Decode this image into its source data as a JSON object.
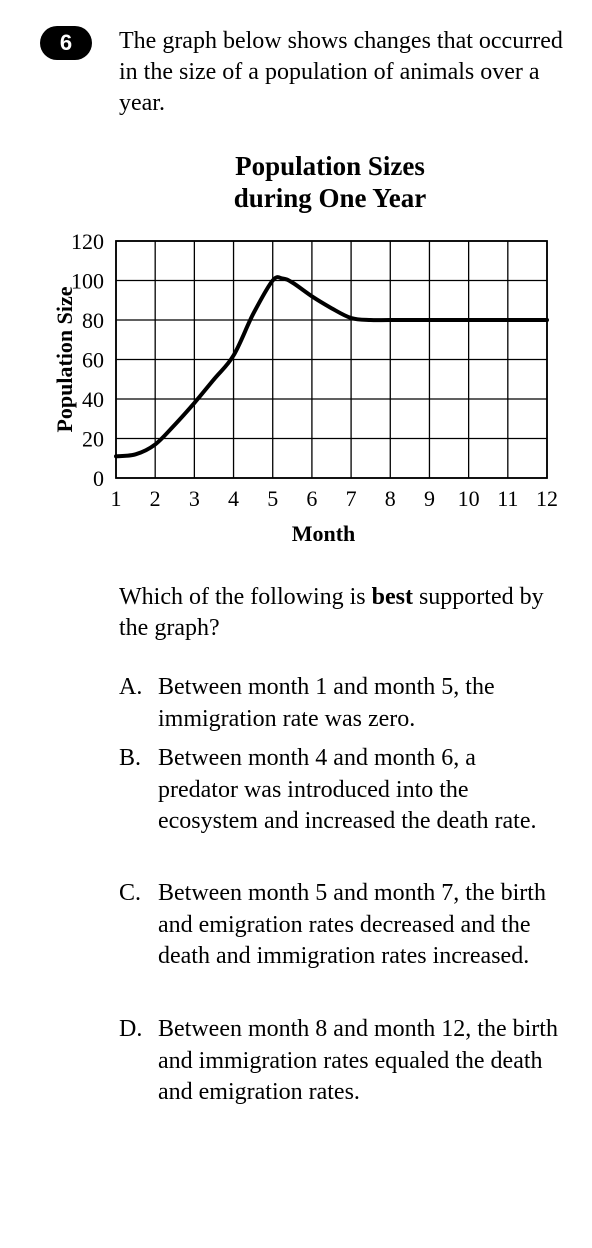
{
  "question": {
    "number": "6",
    "stem": "The graph below shows changes that occurred in the size of a population of animals over a year.",
    "prompt_before": "Which of the following is ",
    "prompt_bold": "best",
    "prompt_after": " supported by the graph?",
    "options": [
      {
        "letter": "A.",
        "text": "Between month 1 and month 5, the immigration rate was zero."
      },
      {
        "letter": "B.",
        "text": "Between month 4 and month 6, a predator was introduced into the ecosystem and increased the death rate."
      },
      {
        "letter": "C.",
        "text": "Between month 5 and month 7, the birth and emigration rates decreased and the death and immigration rates increased."
      },
      {
        "letter": "D.",
        "text": "Between month 8 and month 12, the birth and immigration rates equaled the death and emigration rates."
      }
    ]
  },
  "chart_data": {
    "type": "line",
    "title_line1": "Population Sizes",
    "title_line2": "during One Year",
    "xlabel": "Month",
    "ylabel": "Population Size",
    "xlim": [
      1,
      12
    ],
    "ylim": [
      0,
      120
    ],
    "x_ticks": [
      1,
      2,
      3,
      4,
      5,
      6,
      7,
      8,
      9,
      10,
      11,
      12
    ],
    "y_ticks": [
      0,
      20,
      40,
      60,
      80,
      100,
      120
    ],
    "grid": true,
    "series": [
      {
        "x": [
          1,
          1.5,
          2,
          2.5,
          3,
          3.5,
          4,
          4.5,
          5,
          5.25,
          5.5,
          6,
          6.5,
          7,
          7.5,
          8,
          9,
          10,
          11,
          12
        ],
        "values": [
          11,
          12,
          17,
          27,
          38,
          50,
          62,
          83,
          100,
          101,
          99,
          92,
          86,
          81,
          80,
          80,
          80,
          80,
          80,
          80
        ]
      }
    ],
    "line_color": "#000000"
  }
}
